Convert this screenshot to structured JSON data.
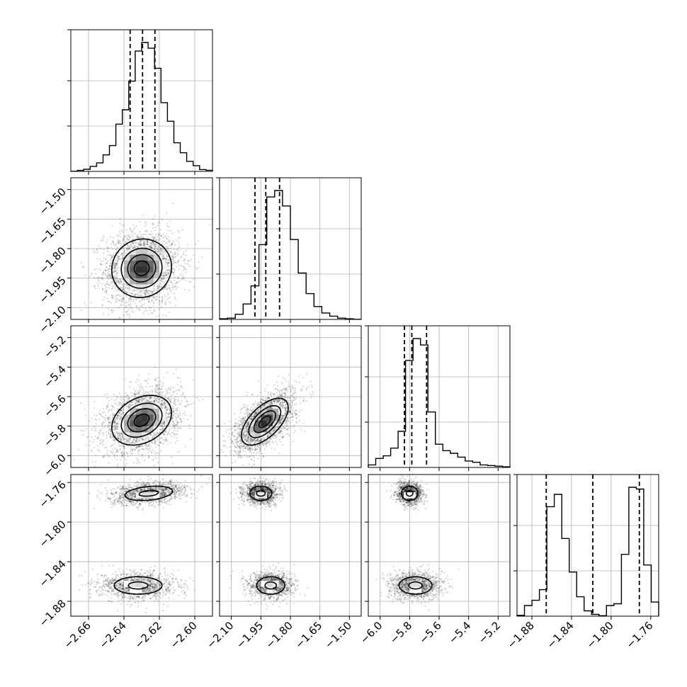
{
  "chart_data": {
    "type": "corner",
    "title": "",
    "grid": true,
    "parameters": [
      {
        "range": [
          -2.67,
          -2.59
        ],
        "ticks": [
          -2.66,
          -2.64,
          -2.62,
          -2.6
        ],
        "tick_labels": [
          "−2.66",
          "−2.64",
          "−2.62",
          "−2.60"
        ],
        "quantiles": [
          -2.6365,
          -2.6295,
          -2.6225
        ],
        "histogram": [
          0.1,
          0.7,
          1.5,
          3.5,
          6.0,
          11.5,
          18.0,
          33.0,
          43.0,
          63.0,
          84.0,
          90.0,
          86.0,
          72.0,
          48.0,
          35.0,
          20.0,
          13.0,
          7.0,
          4.0,
          1.3,
          0.8
        ]
      },
      {
        "range": [
          -2.16,
          -1.44
        ],
        "ticks": [
          -2.1,
          -1.95,
          -1.8,
          -1.65,
          -1.5
        ],
        "tick_labels": [
          "−2.10",
          "−1.95",
          "−1.80",
          "−1.65",
          "−1.50"
        ],
        "quantiles": [
          -1.98,
          -1.925,
          -1.855
        ],
        "histogram": [
          0.5,
          1.0,
          4.0,
          12.0,
          26.0,
          58.0,
          95.0,
          100.0,
          88.0,
          62.0,
          36.0,
          20.0,
          10.0,
          5.0,
          2.5,
          1.0,
          0.5,
          0.1
        ]
      },
      {
        "range": [
          -6.08,
          -5.12
        ],
        "ticks": [
          -6.0,
          -5.8,
          -5.6,
          -5.4,
          -5.2
        ],
        "tick_labels": [
          "−6.0",
          "−5.8",
          "−5.6",
          "−5.4",
          "−5.2"
        ],
        "quantiles": [
          -5.835,
          -5.785,
          -5.685
        ],
        "histogram": [
          2.0,
          7.0,
          9.0,
          15.0,
          28.0,
          83.0,
          100.0,
          95.0,
          43.0,
          18.0,
          13.0,
          11.0,
          8.0,
          5.0,
          4.0,
          2.0,
          1.5,
          1.0,
          0.5
        ]
      },
      {
        "range": [
          -1.895,
          -1.752
        ],
        "ticks": [
          -1.88,
          -1.84,
          -1.8,
          -1.76
        ],
        "tick_labels": [
          "−1.88",
          "−1.84",
          "−1.80",
          "−1.76"
        ],
        "quantiles": [
          -1.8655,
          -1.8185,
          -1.7715
        ],
        "histogram": [
          0.5,
          6.0,
          9.0,
          15.0,
          62.0,
          69.0,
          44.0,
          25.0,
          11.0,
          3.0,
          1.0,
          0.3,
          6.0,
          7.0,
          35.0,
          73.0,
          72.0,
          29.0,
          8.0
        ]
      }
    ],
    "pairs": [
      {
        "x": 0,
        "y": 1,
        "components": [
          {
            "mean": [
              -2.63,
              -1.9
            ],
            "sd": [
              0.0085,
              0.075
            ],
            "corr": 0.05
          }
        ]
      },
      {
        "x": 0,
        "y": 2,
        "components": [
          {
            "mean": [
              -2.63,
              -5.76
            ],
            "sd": [
              0.0085,
              0.085
            ],
            "corr": 0.3
          }
        ]
      },
      {
        "x": 1,
        "y": 2,
        "components": [
          {
            "mean": [
              -1.93,
              -5.77
            ],
            "sd": [
              0.06,
              0.08
            ],
            "corr": 0.6
          }
        ]
      },
      {
        "x": 0,
        "y": 3,
        "components": [
          {
            "mean": [
              -2.626,
              -1.771
            ],
            "sd": [
              0.0085,
              0.0045
            ],
            "corr": 0.3,
            "weight": 0.5
          },
          {
            "mean": [
              -2.632,
              -1.864
            ],
            "sd": [
              0.0085,
              0.0055
            ],
            "corr": 0.0,
            "weight": 0.5
          }
        ]
      },
      {
        "x": 1,
        "y": 3,
        "components": [
          {
            "mean": [
              -1.95,
              -1.771
            ],
            "sd": [
              0.035,
              0.0045
            ],
            "corr": 0.0,
            "weight": 0.5
          },
          {
            "mean": [
              -1.9,
              -1.864
            ],
            "sd": [
              0.045,
              0.0055
            ],
            "corr": 0.0,
            "weight": 0.5
          }
        ]
      },
      {
        "x": 2,
        "y": 3,
        "components": [
          {
            "mean": [
              -5.8,
              -1.771
            ],
            "sd": [
              0.035,
              0.0045
            ],
            "corr": 0.0,
            "weight": 0.5
          },
          {
            "mean": [
              -5.76,
              -1.864
            ],
            "sd": [
              0.07,
              0.0055
            ],
            "corr": 0.0,
            "weight": 0.5
          }
        ]
      }
    ]
  }
}
